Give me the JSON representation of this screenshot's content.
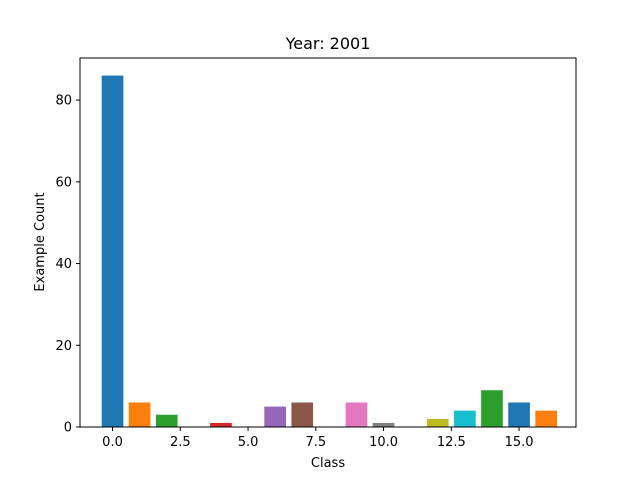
{
  "chart_data": {
    "type": "bar",
    "title": "Year: 2001",
    "xlabel": "Class",
    "ylabel": "Example Count",
    "x": [
      0,
      1,
      2,
      3,
      4,
      5,
      6,
      7,
      8,
      9,
      10,
      11,
      12,
      13,
      14,
      15,
      16
    ],
    "values": [
      86,
      6,
      3,
      0,
      1,
      0,
      5,
      6,
      0,
      6,
      1,
      0,
      2,
      4,
      9,
      6,
      4
    ],
    "bar_colors": [
      "#1f77b4",
      "#ff7f0e",
      "#2ca02c",
      "#d62728",
      "#d62728",
      "#9467bd",
      "#9467bd",
      "#8c564b",
      "#e377c2",
      "#e377c2",
      "#7f7f7f",
      "#bcbd22",
      "#bcbd22",
      "#17becf",
      "#2ca02c",
      "#1f77b4",
      "#ff7f0e"
    ],
    "xlim": [
      -1.2,
      17.1
    ],
    "ylim": [
      0,
      90.3
    ],
    "xticks": [
      0.0,
      2.5,
      5.0,
      7.5,
      10.0,
      12.5,
      15.0
    ],
    "xtick_labels": [
      "0.0",
      "2.5",
      "5.0",
      "7.5",
      "10.0",
      "12.5",
      "15.0"
    ],
    "yticks": [
      0,
      20,
      40,
      60,
      80
    ],
    "ytick_labels": [
      "0",
      "20",
      "40",
      "60",
      "80"
    ],
    "grid": false,
    "legend": "none"
  }
}
